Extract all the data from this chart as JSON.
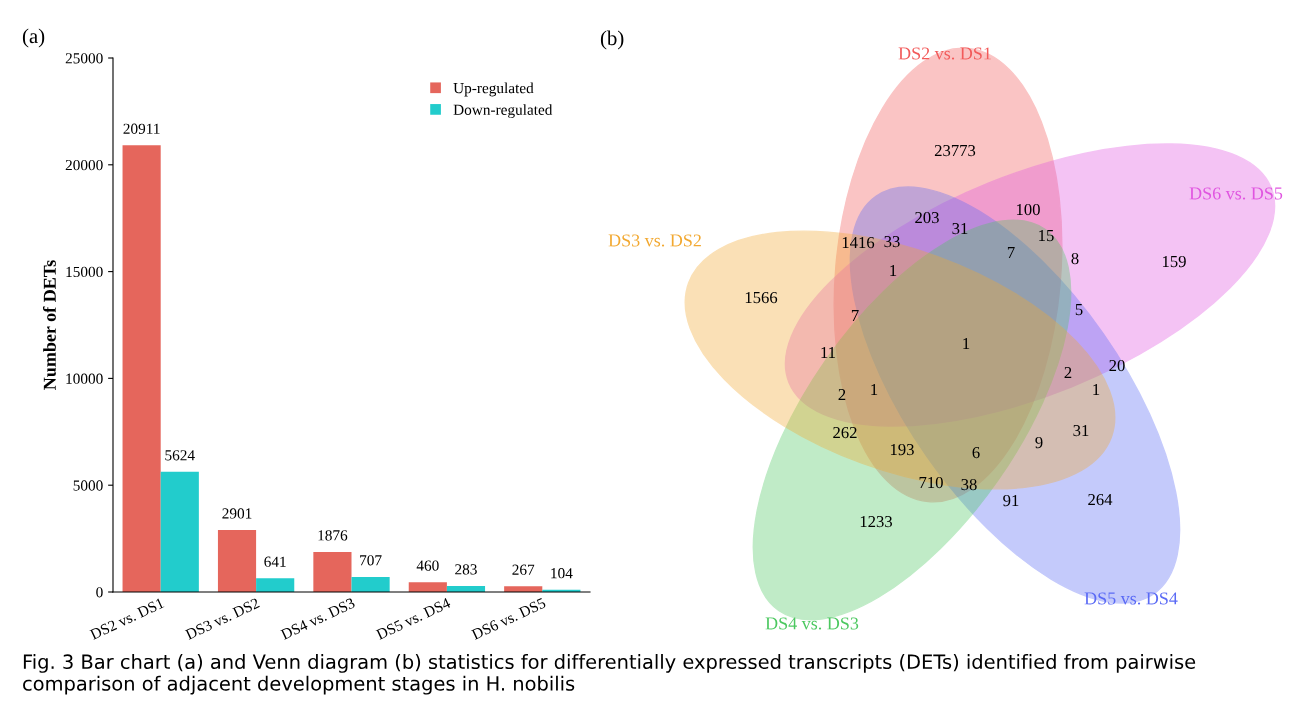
{
  "chart_data": [
    {
      "type": "bar",
      "title": "(a)",
      "ylabel": "Number of DETs",
      "categories": [
        "DS2 vs. DS1",
        "DS3 vs. DS2",
        "DS4 vs. DS3",
        "DS5 vs. DS4",
        "DS6 vs. DS5"
      ],
      "series": [
        {
          "name": "Up-regulated",
          "color": "#e5665c",
          "values": [
            20911,
            2901,
            1876,
            460,
            267
          ]
        },
        {
          "name": "Down-regulated",
          "color": "#22cccc",
          "values": [
            5624,
            641,
            707,
            283,
            104
          ]
        }
      ],
      "ylim": [
        0,
        25000
      ],
      "yticks": [
        0,
        5000,
        10000,
        15000,
        20000,
        25000
      ],
      "data_labels": true,
      "legend": "top right",
      "grid": false,
      "annotations": [
        "Fig. 3 Bar chart (a) and Venn diagram (b) statistics for differentially expressed transcripts (DETs) identified from pairwise comparison of adjacent development stages in H. nobilis"
      ]
    },
    {
      "type": "other",
      "title": "(b)",
      "categories": [
        "DS2 vs. DS1",
        "DS6 vs. DS5",
        "DS5 vs. DS4",
        "DS4 vs. DS3",
        "DS3 vs. DS2"
      ],
      "colors": [
        "#f25a5a",
        "#e055e0",
        "#5a6af5",
        "#4cc860",
        "#f2a830"
      ],
      "annotations": [
        "23773",
        "159",
        "264",
        "1233",
        "1566",
        "1416",
        "33",
        "203",
        "31",
        "100",
        "15",
        "7",
        "8",
        "5",
        "1",
        "1",
        "7",
        "11",
        "2",
        "1",
        "262",
        "193",
        "6",
        "710",
        "38",
        "91",
        "9",
        "31",
        "2",
        "1",
        "20"
      ]
    }
  ]
}
